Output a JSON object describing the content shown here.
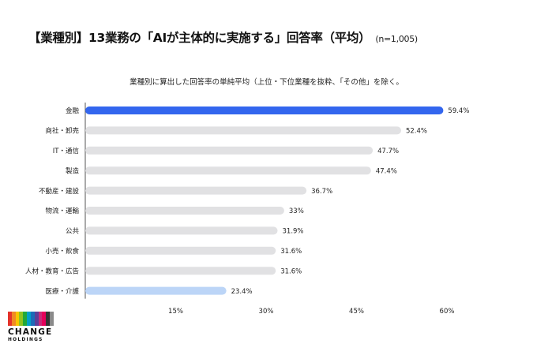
{
  "title": "【業種別】13業務の「AIが主体的に実施する」回答率（平均）",
  "sample_size": "(n=1,005)",
  "subtitle": "業種別に算出した回答率の単純平均（上位・下位業種を抜粋、「その他」を除く。",
  "logo": {
    "line1": "CHANGE",
    "line2": "HOLDINGS"
  },
  "colors": {
    "highlight_top": "#3366ee",
    "highlight_bottom": "#bcd5f7",
    "default": "#e1e1e3",
    "axis": "#555555",
    "text": "#222222"
  },
  "chart_data": {
    "type": "bar",
    "orientation": "horizontal",
    "categories": [
      "金融",
      "商社・卸売",
      "IT・通信",
      "製造",
      "不動産・建設",
      "物流・運輸",
      "公共",
      "小売・飲食",
      "人材・教育・広告",
      "医療・介護"
    ],
    "values": [
      59.4,
      52.4,
      47.7,
      47.4,
      36.7,
      33.0,
      31.9,
      31.6,
      31.6,
      23.4
    ],
    "value_labels": [
      "59.4%",
      "52.4%",
      "47.7%",
      "47.4%",
      "36.7%",
      "33%",
      "31.9%",
      "31.6%",
      "31.6%",
      "23.4%"
    ],
    "highlight": {
      "金融": "highlight_top",
      "医療・介護": "highlight_bottom"
    },
    "xlim": [
      0,
      60
    ],
    "xticks": [
      15,
      30,
      45,
      60
    ],
    "xtick_labels": [
      "15%",
      "30%",
      "45%",
      "60%"
    ],
    "grid": false
  }
}
